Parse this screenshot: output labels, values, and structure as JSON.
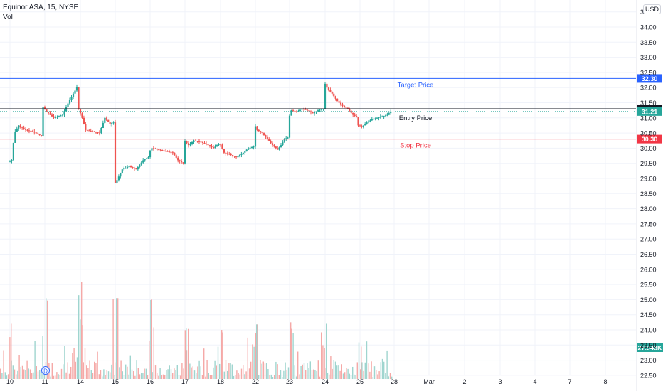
{
  "header": {
    "symbol_line": "Equinor ASA, 15, NYSE",
    "volume_label": "Vol"
  },
  "currency_button": "USD",
  "colors": {
    "up": "#26a69a",
    "down": "#ef5350",
    "target_line": "#2962ff",
    "entry_line": "#131722",
    "stop_line": "#f23645",
    "grid": "#f0f3fa",
    "axis_text": "#131722",
    "last_price_badge": "#26a69a",
    "volume_badge": "#26a69a"
  },
  "chart_data": {
    "type": "candlestick",
    "price_axis": {
      "range": [
        22.4,
        34.55
      ],
      "ticks": [
        "34.50",
        "34.00",
        "33.50",
        "33.00",
        "32.50",
        "32.00",
        "31.50",
        "31.00",
        "30.50",
        "30.00",
        "29.50",
        "29.00",
        "28.50",
        "28.00",
        "27.50",
        "27.00",
        "26.50",
        "26.00",
        "25.50",
        "25.00",
        "24.50",
        "24.00",
        "23.50",
        "23.00",
        "22.50"
      ]
    },
    "date_axis": {
      "ticks": [
        "10",
        "11",
        "14",
        "15",
        "16",
        "17",
        "18",
        "22",
        "23",
        "24",
        "25",
        "28",
        "Mar",
        "2",
        "3",
        "4",
        "7",
        "8"
      ]
    },
    "levels": [
      {
        "label": "Target Price",
        "value": 32.3,
        "badge": "32.30"
      },
      {
        "label": "Entry Price",
        "value": 31.3,
        "badge": "31.30"
      },
      {
        "label": "Stop Price",
        "value": 30.3,
        "badge": "30.30"
      }
    ],
    "last_price": {
      "value": 31.21,
      "badge": "31.21"
    },
    "volume_badge": "27.943K",
    "dividend_marker": "D",
    "day_close_path": [
      [
        0,
        29.55
      ],
      [
        0.08,
        29.6
      ],
      [
        0.12,
        29.62
      ],
      [
        0.14,
        30.1
      ],
      [
        0.2,
        30.55
      ],
      [
        0.3,
        30.75
      ],
      [
        0.5,
        30.6
      ],
      [
        0.7,
        30.55
      ],
      [
        0.95,
        30.4
      ],
      [
        1.0,
        31.35
      ],
      [
        1.1,
        31.2
      ],
      [
        1.3,
        31.0
      ],
      [
        1.55,
        31.1
      ],
      [
        1.75,
        31.6
      ],
      [
        1.9,
        31.9
      ],
      [
        2.0,
        32.15
      ],
      [
        2.0,
        31.3
      ],
      [
        2.1,
        31.0
      ],
      [
        2.2,
        30.6
      ],
      [
        2.4,
        30.55
      ],
      [
        2.6,
        30.5
      ],
      [
        2.75,
        31.0
      ],
      [
        2.9,
        30.8
      ],
      [
        3.0,
        30.85
      ],
      [
        3.0,
        28.75
      ],
      [
        3.08,
        28.9
      ],
      [
        3.25,
        29.3
      ],
      [
        3.45,
        29.4
      ],
      [
        3.65,
        29.3
      ],
      [
        3.85,
        29.6
      ],
      [
        4.0,
        29.7
      ],
      [
        4.0,
        29.85
      ],
      [
        4.1,
        30.0
      ],
      [
        4.3,
        29.95
      ],
      [
        4.5,
        29.9
      ],
      [
        4.7,
        29.85
      ],
      [
        4.85,
        29.6
      ],
      [
        5.0,
        29.5
      ],
      [
        5.0,
        30.3
      ],
      [
        5.15,
        30.1
      ],
      [
        5.3,
        30.25
      ],
      [
        5.5,
        30.2
      ],
      [
        5.7,
        30.1
      ],
      [
        5.85,
        30.0
      ],
      [
        6.0,
        30.15
      ],
      [
        6.0,
        30.25
      ],
      [
        6.15,
        29.85
      ],
      [
        6.3,
        29.8
      ],
      [
        6.5,
        29.7
      ],
      [
        6.7,
        29.85
      ],
      [
        6.85,
        30.0
      ],
      [
        7.0,
        30.05
      ],
      [
        7.0,
        30.85
      ],
      [
        7.1,
        30.6
      ],
      [
        7.25,
        30.5
      ],
      [
        7.4,
        30.3
      ],
      [
        7.55,
        30.1
      ],
      [
        7.7,
        29.95
      ],
      [
        7.8,
        30.1
      ],
      [
        7.9,
        30.3
      ],
      [
        8.0,
        30.35
      ],
      [
        8.0,
        30.9
      ],
      [
        8.1,
        31.25
      ],
      [
        8.25,
        31.2
      ],
      [
        8.4,
        31.3
      ],
      [
        8.55,
        31.25
      ],
      [
        8.7,
        31.15
      ],
      [
        8.85,
        31.25
      ],
      [
        9.0,
        31.3
      ],
      [
        9.0,
        32.25
      ],
      [
        9.1,
        32.0
      ],
      [
        9.25,
        31.8
      ],
      [
        9.4,
        31.55
      ],
      [
        9.55,
        31.4
      ],
      [
        9.7,
        31.3
      ],
      [
        9.85,
        31.1
      ],
      [
        10.0,
        31.0
      ],
      [
        10.0,
        30.75
      ],
      [
        10.1,
        30.7
      ],
      [
        10.25,
        30.85
      ],
      [
        10.4,
        30.95
      ],
      [
        10.55,
        31.0
      ],
      [
        10.7,
        31.05
      ],
      [
        10.85,
        31.1
      ],
      [
        10.95,
        31.21
      ]
    ],
    "volume": [
      [
        0,
        24.2
      ],
      [
        1,
        25.05
      ],
      [
        2,
        25.58
      ],
      [
        3,
        25.05
      ],
      [
        4,
        25.0
      ],
      [
        5,
        24.05
      ],
      [
        6,
        24.0
      ],
      [
        7,
        24.18
      ],
      [
        8,
        24.25
      ],
      [
        9,
        24.2
      ],
      [
        10,
        23.45
      ]
    ]
  }
}
